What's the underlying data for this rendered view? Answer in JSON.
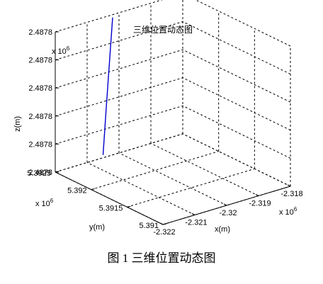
{
  "chart_data": {
    "type": "line",
    "title": "三维位置动态图",
    "xlabel": "x(m)",
    "ylabel": "y(m)",
    "zlabel": "z(m)",
    "x_multiplier": "x 10",
    "x_exponent": "6",
    "y_multiplier": "x 10",
    "y_exponent": "6",
    "z_multiplier": "x 10",
    "z_exponent": "6",
    "x_ticks": [
      "-2.322",
      "-2.321",
      "-2.32",
      "-2.319",
      "-2.318"
    ],
    "y_ticks": [
      "5.391",
      "5.3915",
      "5.392",
      "5.3925"
    ],
    "z_ticks": [
      "2.4878",
      "2.4878",
      "2.4878",
      "2.4878",
      "2.4878",
      "2.4878"
    ],
    "xlim": [
      -2.322,
      -2.318
    ],
    "ylim": [
      5.391,
      5.3925
    ],
    "grid": true,
    "series": [
      {
        "color": "#0000cc",
        "points": [
          {
            "x": -2.3205,
            "y": 5.3925,
            "z": 0.02
          },
          {
            "x": -2.3204,
            "y": 5.3925,
            "z": 0.35
          },
          {
            "x": -2.3202,
            "y": 5.3925,
            "z": 0.98
          }
        ]
      }
    ]
  },
  "caption": "图 1  三维位置动态图"
}
